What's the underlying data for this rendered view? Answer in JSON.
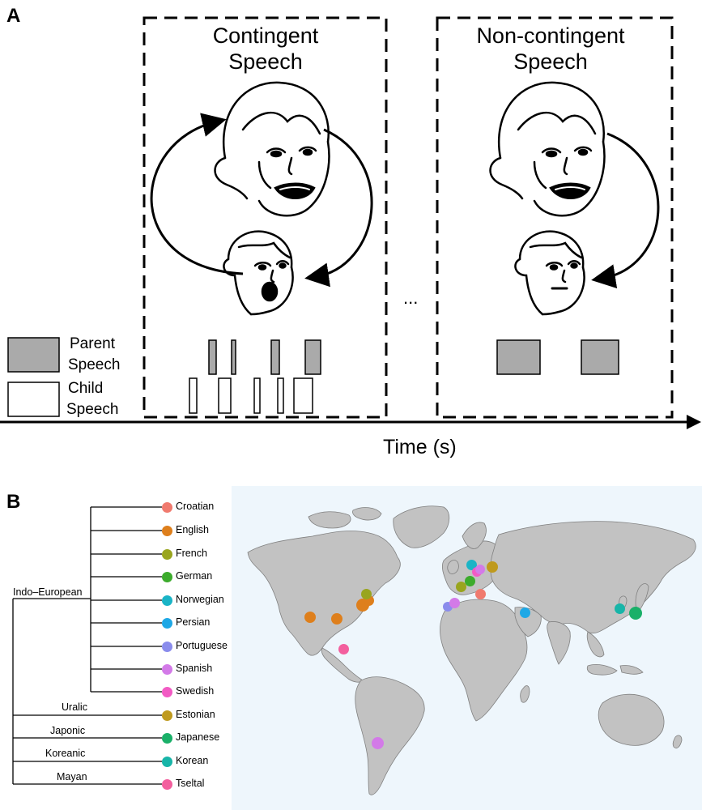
{
  "panel_a": {
    "label": "A",
    "contingent_title_line1": "Contingent",
    "contingent_title_line2": "Speech",
    "noncontingent_title_line1": "Non-contingent",
    "noncontingent_title_line2": "Speech",
    "ellipsis": "...",
    "legend_parent_line1": "Parent",
    "legend_parent_line2": "Speech",
    "legend_child_line1": "Child",
    "legend_child_line2": "Speech",
    "time_axis_label": "Time (s)",
    "parent_color": "#aaaaaa"
  },
  "panel_b": {
    "label": "B",
    "families": [
      "Indo–European",
      "Uralic",
      "Japonic",
      "Koreanic",
      "Mayan"
    ],
    "languages": [
      {
        "name": "Croatian",
        "color": "#f07a6e"
      },
      {
        "name": "English",
        "color": "#de7f1c"
      },
      {
        "name": "French",
        "color": "#99a51e"
      },
      {
        "name": "German",
        "color": "#3cab2c"
      },
      {
        "name": "Norwegian",
        "color": "#1ab4c6"
      },
      {
        "name": "Persian",
        "color": "#1ea8e6"
      },
      {
        "name": "Portuguese",
        "color": "#8a8cec"
      },
      {
        "name": "Spanish",
        "color": "#d37ae8"
      },
      {
        "name": "Swedish",
        "color": "#f25bc4"
      },
      {
        "name": "Estonian",
        "color": "#bf9a1e"
      },
      {
        "name": "Japanese",
        "color": "#1ab069"
      },
      {
        "name": "Korean",
        "color": "#17b5a8"
      },
      {
        "name": "Tseltal",
        "color": "#f35f9e"
      }
    ],
    "map_ocean_color": "#eef6fc",
    "map_land_color": "#c2c2c2"
  }
}
